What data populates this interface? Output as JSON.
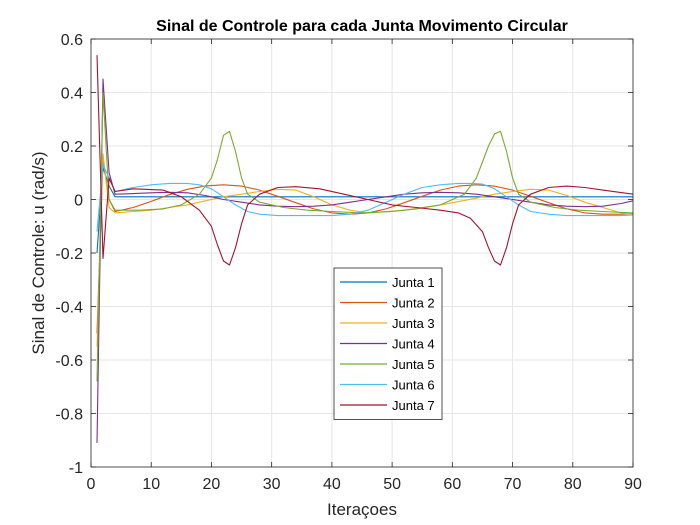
{
  "chart_data": {
    "type": "line",
    "title": "Sinal de Controle para cada Junta Movimento Circular",
    "xlabel": "Iteraçoes",
    "ylabel": "Sinal de Controle: u (rad/s)",
    "xlim": [
      0,
      90
    ],
    "ylim": [
      -1,
      0.6
    ],
    "xticks": [
      "0",
      "10",
      "20",
      "30",
      "40",
      "50",
      "60",
      "70",
      "80",
      "90"
    ],
    "yticks": [
      "0.6",
      "0.4",
      "0.2",
      "0",
      "-0.2",
      "-0.4",
      "-0.6",
      "-0.8",
      "-1"
    ],
    "grid": true,
    "legend_position": "inside-bottom-center",
    "series": [
      {
        "name": "Junta 1",
        "color": "#0072BD",
        "x": [
          1,
          2,
          3,
          4,
          10,
          20,
          30,
          40,
          50,
          60,
          70,
          80,
          90
        ],
        "y": [
          -0.2,
          0.12,
          0.05,
          0.01,
          0.01,
          0.01,
          0.01,
          0.01,
          0.01,
          0.01,
          0.01,
          0.01,
          0.01
        ]
      },
      {
        "name": "Junta 2",
        "color": "#D95319",
        "x": [
          1,
          2,
          3,
          4,
          7,
          10,
          13,
          16,
          19,
          22,
          25,
          28,
          31,
          34,
          37,
          40,
          43,
          46,
          49,
          52,
          55,
          58,
          61,
          64,
          67,
          70,
          73,
          76,
          79,
          82,
          85,
          88,
          90
        ],
        "y": [
          -0.5,
          0.15,
          0.0,
          -0.045,
          -0.03,
          -0.007,
          0.018,
          0.038,
          0.051,
          0.055,
          0.05,
          0.035,
          0.012,
          -0.012,
          -0.035,
          -0.05,
          -0.055,
          -0.05,
          -0.035,
          -0.012,
          0.012,
          0.035,
          0.05,
          0.055,
          0.05,
          0.035,
          0.012,
          -0.012,
          -0.035,
          -0.05,
          -0.055,
          -0.055,
          -0.052
        ]
      },
      {
        "name": "Junta 3",
        "color": "#EDB120",
        "x": [
          1,
          2,
          3,
          4,
          7,
          10,
          13,
          16,
          19,
          22,
          25,
          28,
          31,
          34,
          37,
          40,
          43,
          46,
          49,
          52,
          55,
          58,
          61,
          64,
          67,
          70,
          73,
          76,
          79,
          82,
          85,
          88,
          90
        ],
        "y": [
          -0.55,
          0.17,
          -0.03,
          -0.05,
          -0.045,
          -0.04,
          -0.03,
          -0.02,
          -0.005,
          0.01,
          0.02,
          0.03,
          0.038,
          0.035,
          0.01,
          -0.02,
          -0.04,
          -0.05,
          -0.045,
          -0.04,
          -0.03,
          -0.02,
          -0.008,
          0.005,
          0.02,
          0.03,
          0.038,
          0.035,
          0.015,
          -0.01,
          -0.03,
          -0.05,
          -0.055
        ]
      },
      {
        "name": "Junta 4",
        "color": "#7E2F8E",
        "x": [
          1,
          2,
          3,
          4,
          7,
          10,
          13,
          16,
          19,
          22,
          25,
          28,
          31,
          34,
          37,
          40,
          43,
          46,
          49,
          52,
          55,
          58,
          61,
          64,
          67,
          70,
          73,
          76,
          79,
          82,
          85,
          88,
          90
        ],
        "y": [
          -0.91,
          0.45,
          0.1,
          0.02,
          0.022,
          0.025,
          0.027,
          0.025,
          0.015,
          0.0,
          -0.01,
          -0.02,
          -0.025,
          -0.027,
          -0.025,
          -0.02,
          -0.01,
          0.0,
          0.01,
          0.02,
          0.025,
          0.027,
          0.025,
          0.02,
          0.01,
          0.0,
          -0.01,
          -0.02,
          -0.025,
          -0.027,
          -0.025,
          -0.015,
          -0.005
        ]
      },
      {
        "name": "Junta 5",
        "color": "#77AC30",
        "x": [
          1,
          2,
          3,
          4,
          8,
          12,
          15,
          18,
          20,
          21,
          22,
          23,
          24,
          25,
          26,
          28,
          32,
          36,
          40,
          45,
          50,
          54,
          58,
          62,
          64,
          66,
          67,
          68,
          69,
          70,
          71,
          73,
          77,
          81,
          85,
          90
        ],
        "y": [
          -0.68,
          0.4,
          0.0,
          -0.04,
          -0.04,
          -0.035,
          -0.02,
          0.02,
          0.08,
          0.15,
          0.24,
          0.255,
          0.18,
          0.08,
          0.02,
          -0.01,
          -0.03,
          -0.04,
          -0.045,
          -0.05,
          -0.045,
          -0.035,
          -0.02,
          0.02,
          0.08,
          0.2,
          0.245,
          0.255,
          0.18,
          0.08,
          0.02,
          -0.01,
          -0.03,
          -0.04,
          -0.045,
          -0.05
        ]
      },
      {
        "name": "Junta 6",
        "color": "#4DBEEE",
        "x": [
          1,
          2,
          3,
          4,
          7,
          10,
          13,
          16,
          18,
          20,
          22,
          24,
          26,
          28,
          31,
          34,
          37,
          40,
          43,
          46,
          49,
          52,
          55,
          58,
          61,
          63,
          65,
          67,
          69,
          71,
          73,
          76,
          79,
          82,
          85,
          88,
          90
        ],
        "y": [
          -0.12,
          0.13,
          0.08,
          0.03,
          0.045,
          0.055,
          0.06,
          0.06,
          0.055,
          0.04,
          0.01,
          -0.02,
          -0.045,
          -0.055,
          -0.06,
          -0.06,
          -0.06,
          -0.06,
          -0.055,
          -0.04,
          -0.01,
          0.02,
          0.045,
          0.055,
          0.06,
          0.06,
          0.058,
          0.04,
          0.01,
          -0.02,
          -0.045,
          -0.055,
          -0.06,
          -0.06,
          -0.06,
          -0.06,
          -0.058
        ]
      },
      {
        "name": "Junta 7",
        "color": "#A2142F",
        "x": [
          1,
          2,
          3,
          4,
          7,
          12,
          15,
          18,
          20,
          21,
          22,
          23,
          24,
          25,
          26,
          28,
          31,
          34,
          38,
          42,
          46,
          50,
          54,
          58,
          61,
          63,
          65,
          66,
          67,
          68,
          69,
          70,
          71,
          73,
          76,
          79,
          82,
          85,
          90
        ],
        "y": [
          0.54,
          -0.22,
          0.08,
          0.03,
          0.04,
          0.035,
          0.01,
          -0.04,
          -0.1,
          -0.17,
          -0.23,
          -0.245,
          -0.18,
          -0.09,
          -0.02,
          0.02,
          0.045,
          0.048,
          0.04,
          0.02,
          0.0,
          -0.02,
          -0.03,
          -0.04,
          -0.05,
          -0.07,
          -0.12,
          -0.18,
          -0.23,
          -0.245,
          -0.18,
          -0.09,
          -0.02,
          0.02,
          0.045,
          0.05,
          0.045,
          0.035,
          0.02
        ]
      }
    ]
  }
}
